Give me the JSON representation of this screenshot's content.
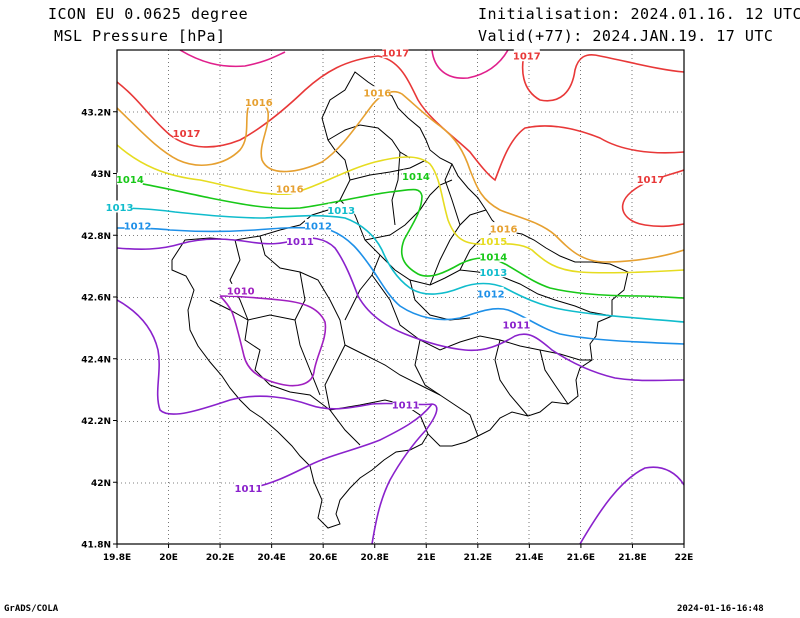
{
  "header": {
    "model": "ICON EU 0.0625 degree",
    "field": "MSL Pressure [hPa]",
    "init": "Initialisation: 2024.01.16. 12 UTC",
    "valid": "Valid(+77): 2024.JAN.19. 17 UTC"
  },
  "footer": {
    "left": "GrADS/COLA",
    "right": "2024-01-16-16:48"
  },
  "axes": {
    "x_ticks": [
      "19.8E",
      "20E",
      "20.2E",
      "20.4E",
      "20.6E",
      "20.8E",
      "21E",
      "21.2E",
      "21.4E",
      "21.6E",
      "21.8E",
      "22E"
    ],
    "y_ticks": [
      "41.8N",
      "42N",
      "42.2N",
      "42.4N",
      "42.6N",
      "42.8N",
      "43N",
      "43.2N"
    ],
    "lon_range": [
      19.8,
      22.0
    ],
    "lat_range": [
      41.8,
      43.4
    ],
    "grid": "dotted"
  },
  "contour_labels": [
    {
      "text": "1017",
      "lon": 20.88,
      "lat": 43.39
    },
    {
      "text": "1017",
      "lon": 21.39,
      "lat": 43.38
    },
    {
      "text": "1017",
      "lon": 20.07,
      "lat": 43.13
    },
    {
      "text": "1017",
      "lon": 21.87,
      "lat": 42.98
    },
    {
      "text": "1016",
      "lon": 20.35,
      "lat": 43.23
    },
    {
      "text": "1016",
      "lon": 20.81,
      "lat": 43.26
    },
    {
      "text": "1016",
      "lon": 20.47,
      "lat": 42.95
    },
    {
      "text": "1016",
      "lon": 21.3,
      "lat": 42.82
    },
    {
      "text": "1015",
      "lon": 21.26,
      "lat": 42.78
    },
    {
      "text": "1014",
      "lon": 19.85,
      "lat": 42.98
    },
    {
      "text": "1014",
      "lon": 20.96,
      "lat": 42.99
    },
    {
      "text": "1014",
      "lon": 21.26,
      "lat": 42.73
    },
    {
      "text": "1013",
      "lon": 19.81,
      "lat": 42.89
    },
    {
      "text": "1013",
      "lon": 20.67,
      "lat": 42.88
    },
    {
      "text": "1013",
      "lon": 21.26,
      "lat": 42.68
    },
    {
      "text": "1012",
      "lon": 19.88,
      "lat": 42.83
    },
    {
      "text": "1012",
      "lon": 20.58,
      "lat": 42.83
    },
    {
      "text": "1012",
      "lon": 21.25,
      "lat": 42.61
    },
    {
      "text": "1011",
      "lon": 20.51,
      "lat": 42.78
    },
    {
      "text": "1011",
      "lon": 21.35,
      "lat": 42.51
    },
    {
      "text": "1011",
      "lon": 20.92,
      "lat": 42.25
    },
    {
      "text": "1011",
      "lon": 20.31,
      "lat": 41.98
    },
    {
      "text": "1010",
      "lon": 20.28,
      "lat": 42.62
    }
  ],
  "contour_colors": {
    "1010": "#a020c0",
    "1011": "#8a22cc",
    "1012": "#1e90e8",
    "1013": "#10bccc",
    "1014": "#18c818",
    "1015": "#e6dc20",
    "1016": "#e6a030",
    "1017": "#e83838",
    "1018": "#e0208c"
  }
}
